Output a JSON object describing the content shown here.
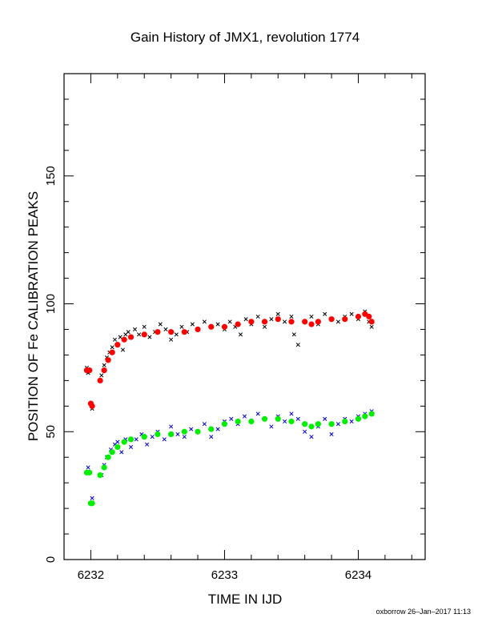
{
  "chart_data": {
    "type": "scatter",
    "title": "Gain History of JMX1, revolution 1774",
    "xlabel": "TIME IN IJD",
    "ylabel": "POSITION OF Fe CALIBRATION PEAKS",
    "xlim": [
      6231.8,
      6234.5
    ],
    "ylim": [
      0,
      190
    ],
    "x_ticks": [
      "6232",
      "6233",
      "6234"
    ],
    "y_ticks": [
      "0",
      "50",
      "100",
      "150"
    ],
    "grid": false,
    "legend": "none",
    "footer": "oxborrow 26–Jan–2017 11:13",
    "series": [
      {
        "color": "#000000",
        "marker": "x",
        "x": [
          6231.97,
          6231.98,
          6232.0,
          6232.01,
          6232.08,
          6232.1,
          6232.12,
          6232.14,
          6232.16,
          6232.18,
          6232.2,
          6232.22,
          6232.24,
          6232.26,
          6232.28,
          6232.3,
          6232.33,
          6232.36,
          6232.4,
          6232.44,
          6232.48,
          6232.52,
          6232.56,
          6232.6,
          6232.64,
          6232.68,
          6232.72,
          6232.76,
          6232.8,
          6232.85,
          6232.9,
          6232.95,
          6233.0,
          6233.04,
          6233.08,
          6233.12,
          6233.16,
          6233.2,
          6233.25,
          6233.3,
          6233.35,
          6233.4,
          6233.45,
          6233.5,
          6233.52,
          6233.55,
          6233.6,
          6233.65,
          6233.7,
          6233.75,
          6233.8,
          6233.85,
          6233.9,
          6233.95,
          6234.0,
          6234.05,
          6234.08,
          6234.1
        ],
        "y": [
          75,
          73,
          61,
          59,
          72,
          76,
          79,
          81,
          83,
          86,
          84,
          87,
          82,
          88,
          89,
          87,
          90,
          88,
          91,
          87,
          89,
          92,
          90,
          86,
          88,
          91,
          89,
          92,
          90,
          93,
          91,
          92,
          90,
          93,
          91,
          88,
          94,
          92,
          95,
          91,
          94,
          96,
          93,
          95,
          88,
          84,
          93,
          95,
          92,
          96,
          94,
          93,
          95,
          96,
          94,
          97,
          93,
          91
        ]
      },
      {
        "color": "#ff0000",
        "marker": "dot",
        "x": [
          6231.97,
          6231.99,
          6232.0,
          6232.01,
          6232.07,
          6232.1,
          6232.13,
          6232.16,
          6232.2,
          6232.25,
          6232.3,
          6232.4,
          6232.5,
          6232.6,
          6232.7,
          6232.8,
          6232.9,
          6233.0,
          6233.1,
          6233.2,
          6233.3,
          6233.4,
          6233.5,
          6233.6,
          6233.65,
          6233.7,
          6233.8,
          6233.9,
          6234.0,
          6234.05,
          6234.08,
          6234.1
        ],
        "y": [
          74,
          74,
          61,
          60,
          70,
          74,
          78,
          81,
          84,
          86,
          87,
          88,
          89,
          89,
          89,
          90,
          91,
          91,
          92,
          93,
          93,
          94,
          93,
          93,
          92,
          93,
          94,
          94,
          95,
          96,
          95,
          93
        ]
      },
      {
        "color": "#0000cc",
        "marker": "x",
        "x": [
          6231.97,
          6231.98,
          6232.0,
          6232.01,
          6232.08,
          6232.1,
          6232.12,
          6232.15,
          6232.18,
          6232.2,
          6232.23,
          6232.26,
          6232.3,
          6232.34,
          6232.38,
          6232.42,
          6232.46,
          6232.5,
          6232.55,
          6232.6,
          6232.65,
          6232.7,
          6232.75,
          6232.8,
          6232.85,
          6232.9,
          6232.95,
          6233.0,
          6233.05,
          6233.1,
          6233.15,
          6233.2,
          6233.25,
          6233.3,
          6233.35,
          6233.4,
          6233.45,
          6233.5,
          6233.55,
          6233.6,
          6233.65,
          6233.7,
          6233.75,
          6233.8,
          6233.85,
          6233.9,
          6233.95,
          6234.0,
          6234.05,
          6234.1
        ],
        "y": [
          34,
          36,
          22,
          24,
          33,
          37,
          40,
          43,
          45,
          46,
          42,
          47,
          44,
          47,
          49,
          45,
          48,
          50,
          47,
          52,
          49,
          48,
          51,
          50,
          53,
          48,
          51,
          54,
          55,
          53,
          56,
          54,
          57,
          55,
          52,
          56,
          54,
          57,
          55,
          50,
          48,
          52,
          55,
          49,
          53,
          55,
          54,
          56,
          57,
          58
        ]
      },
      {
        "color": "#00ee00",
        "marker": "dot",
        "x": [
          6231.97,
          6231.99,
          6232.0,
          6232.01,
          6232.07,
          6232.1,
          6232.13,
          6232.16,
          6232.2,
          6232.25,
          6232.3,
          6232.4,
          6232.5,
          6232.6,
          6232.7,
          6232.8,
          6232.9,
          6233.0,
          6233.1,
          6233.2,
          6233.3,
          6233.4,
          6233.5,
          6233.6,
          6233.65,
          6233.7,
          6233.8,
          6233.9,
          6234.0,
          6234.05,
          6234.1
        ],
        "y": [
          34,
          34,
          22,
          22,
          33,
          36,
          40,
          42,
          44,
          46,
          47,
          48,
          49,
          49,
          50,
          50,
          51,
          53,
          54,
          54,
          55,
          55,
          54,
          53,
          52,
          53,
          53,
          54,
          55,
          56,
          57
        ]
      }
    ]
  }
}
